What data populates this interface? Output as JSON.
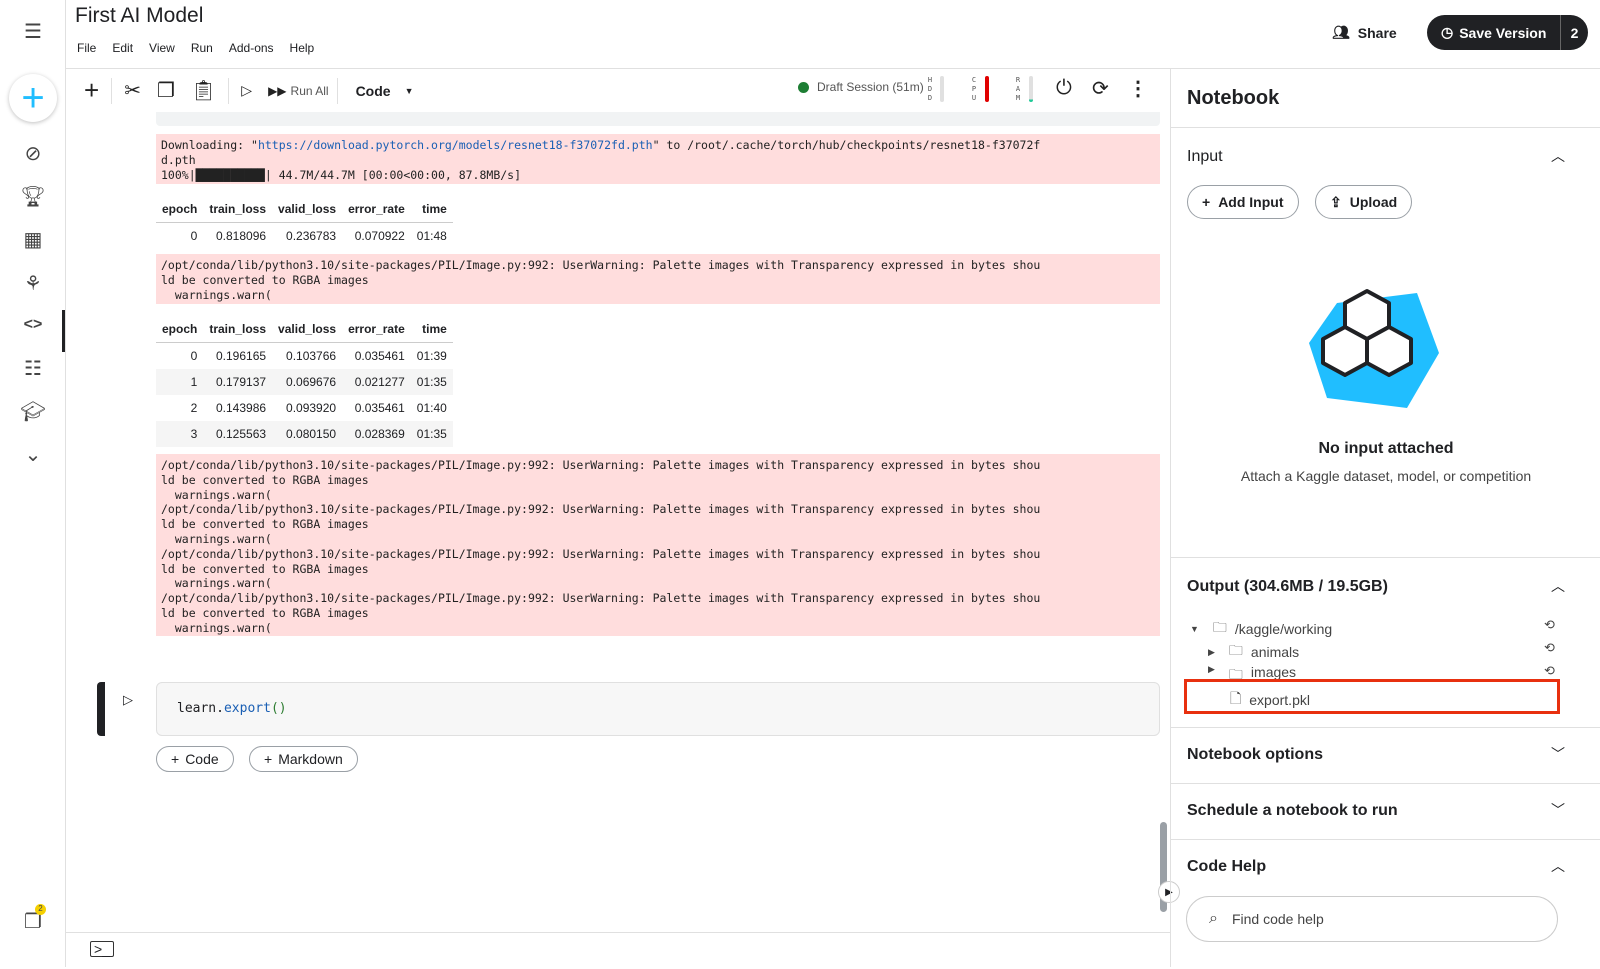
{
  "app": {
    "title": "First AI Model",
    "menu": [
      "File",
      "Edit",
      "View",
      "Run",
      "Add-ons",
      "Help"
    ],
    "share_label": "Share",
    "save_version_label": "Save Version",
    "save_version_count": "2",
    "accent": "#20beff"
  },
  "sidebar": {
    "icons": [
      "menu-icon",
      "create-icon",
      "compass-icon",
      "trophy-icon",
      "table-icon",
      "models-icon",
      "code-icon",
      "discussion-icon",
      "learn-icon",
      "more-icon",
      "notifications-icon"
    ],
    "notification_badge": "2"
  },
  "toolbar": {
    "run_all_label": "Run All",
    "cell_type": "Code",
    "session_label": "Draft Session (51m)",
    "hdd_label": "HDD",
    "cpu_label": "CPU",
    "ram_label": "RAM",
    "session_color": "#1e7e34",
    "cpu_level_color": "#e00000",
    "ram_level_color": "#20c997"
  },
  "output": {
    "download_prefix": "Downloading: \"",
    "download_url": "https://download.pytorch.org/models/resnet18-f37072fd.pth",
    "download_suffix": "\" to /root/.cache/torch/hub/checkpoints/resnet18-f37072f\nd.pth\n100%|██████████| 44.7M/44.7M [00:00<00:00, 87.8MB/s]",
    "columns": [
      "epoch",
      "train_loss",
      "valid_loss",
      "error_rate",
      "time"
    ],
    "table1": [
      [
        "0",
        "0.818096",
        "0.236783",
        "0.070922",
        "01:48"
      ]
    ],
    "warning1": "/opt/conda/lib/python3.10/site-packages/PIL/Image.py:992: UserWarning: Palette images with Transparency expressed in bytes shou\nld be converted to RGBA images\n  warnings.warn(",
    "table2": [
      [
        "0",
        "0.196165",
        "0.103766",
        "0.035461",
        "01:39"
      ],
      [
        "1",
        "0.179137",
        "0.069676",
        "0.021277",
        "01:35"
      ],
      [
        "2",
        "0.143986",
        "0.093920",
        "0.035461",
        "01:40"
      ],
      [
        "3",
        "0.125563",
        "0.080150",
        "0.028369",
        "01:35"
      ]
    ],
    "warning2": "/opt/conda/lib/python3.10/site-packages/PIL/Image.py:992: UserWarning: Palette images with Transparency expressed in bytes shou\nld be converted to RGBA images\n  warnings.warn(\n/opt/conda/lib/python3.10/site-packages/PIL/Image.py:992: UserWarning: Palette images with Transparency expressed in bytes shou\nld be converted to RGBA images\n  warnings.warn(\n/opt/conda/lib/python3.10/site-packages/PIL/Image.py:992: UserWarning: Palette images with Transparency expressed in bytes shou\nld be converted to RGBA images\n  warnings.warn(\n/opt/conda/lib/python3.10/site-packages/PIL/Image.py:992: UserWarning: Palette images with Transparency expressed in bytes shou\nld be converted to RGBA images\n  warnings.warn("
  },
  "cell": {
    "code_obj": "learn.",
    "code_fn": "export",
    "code_parens": "()",
    "add_code": "Code",
    "add_markdown": "Markdown"
  },
  "panel": {
    "title": "Notebook",
    "input_title": "Input",
    "add_input": "Add Input",
    "upload": "Upload",
    "no_input": "No input attached",
    "no_input_sub": "Attach a Kaggle dataset, model, or competition",
    "output_title": "Output (304.6MB / 19.5GB)",
    "tree": [
      {
        "name": "/kaggle/working",
        "type": "folder"
      },
      {
        "name": "animals",
        "type": "folder"
      },
      {
        "name": "images",
        "type": "folder"
      },
      {
        "name": "export.pkl",
        "type": "file",
        "highlighted": true
      }
    ],
    "notebook_options": "Notebook options",
    "schedule": "Schedule a notebook to run",
    "code_help": "Code Help",
    "search_placeholder": "Find code help",
    "highlight_color": "#e8300f"
  }
}
